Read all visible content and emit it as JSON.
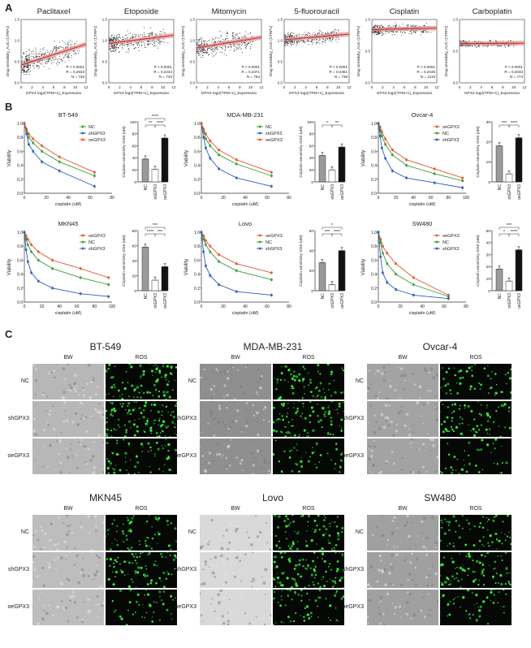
{
  "panels": {
    "a": "A",
    "b": "B",
    "c": "C"
  },
  "scatter": [
    {
      "title": "Paclitaxel",
      "stats": [
        "P < 0.0001",
        "R = 0.2843",
        "N = 746"
      ],
      "ylab": "Drug sensitivity_AUC (CTRP2)",
      "xlab": "GPX3 log2(TPM+1)_Expression",
      "slope": 0.55,
      "y0": 0.28,
      "spread": 0.18,
      "xticks": [
        "0",
        "2",
        "4",
        "6",
        "8",
        "10",
        "12"
      ],
      "yticks": [
        "0.0",
        "0.5",
        "1.0",
        "1.5"
      ]
    },
    {
      "title": "Etoposide",
      "stats": [
        "P < 0.0001",
        "R = 0.2234",
        "N = 733"
      ],
      "ylab": "Drug sensitivity_AUC (CTRP2)",
      "xlab": "GPX3 log2(TPM+1)_Expression",
      "slope": 0.22,
      "y0": 0.62,
      "spread": 0.14,
      "xticks": [
        "0",
        "2",
        "4",
        "6",
        "8",
        "10",
        "12"
      ],
      "yticks": [
        "0.0",
        "0.5",
        "1.0",
        "1.5"
      ]
    },
    {
      "title": "Mitomycin",
      "stats": [
        "P < 0.0001",
        "R = 0.2371",
        "N = 754"
      ],
      "ylab": "Drug sensitivity_AUC (CTRP2)",
      "xlab": "GPX3 log2(TPM+1)_Expression",
      "slope": 0.28,
      "y0": 0.55,
      "spread": 0.16,
      "xticks": [
        "0",
        "2",
        "4",
        "6",
        "8",
        "10",
        "12"
      ],
      "yticks": [
        "0.0",
        "0.5",
        "1.0",
        "1.5"
      ]
    },
    {
      "title": "5-fluorouracil",
      "stats": [
        "P < 0.0001",
        "R = 0.2451",
        "N = 738"
      ],
      "ylab": "Drug sensitivity_AUC (CTRP2)",
      "xlab": "GPX3 log2(TPM+1)_Expression",
      "slope": 0.15,
      "y0": 0.68,
      "spread": 0.1,
      "xticks": [
        "0",
        "2",
        "4",
        "6",
        "8",
        "10",
        "12"
      ],
      "yticks": [
        "0.0",
        "0.5",
        "1.0",
        "1.5"
      ]
    },
    {
      "title": "Cisplatin",
      "stats": [
        "P < 0.0001",
        "R = 0.2046",
        "N = 1115"
      ],
      "ylab": "Drug sensitivity_AUC (CTRP2)",
      "xlab": "GPX3 log2(TPM+1)_Expression",
      "slope": 0.04,
      "y0": 0.84,
      "spread": 0.08,
      "xticks": [
        "0",
        "2",
        "4",
        "6",
        "8",
        "10",
        "12"
      ],
      "yticks": [
        "0.0",
        "0.5",
        "1.0"
      ]
    },
    {
      "title": "Carboplatin",
      "stats": [
        "P < 0.0001",
        "R = 0.2033",
        "N = 773"
      ],
      "ylab": "Drug sensitivity_AUC (CTRP2)",
      "xlab": "GPX3 log2(TPM+1)_Expression",
      "slope": 0.01,
      "y0": 0.62,
      "spread": 0.05,
      "xticks": [
        "0",
        "2",
        "4",
        "6",
        "8",
        "10",
        "12"
      ],
      "yticks": [
        "0.0",
        "0.5",
        "1.0"
      ]
    }
  ],
  "line_charts": [
    {
      "title": "BT-549",
      "xlabel": "cisplatin (uM)",
      "ylabel": "Viability",
      "xmax": 80,
      "xticks": [
        "0",
        "20",
        "40",
        "60",
        "80"
      ],
      "yticks": [
        "0.0",
        "0.2",
        "0.4",
        "0.6",
        "0.8",
        "1.0"
      ],
      "series": [
        {
          "name": "NC",
          "color": "#3a9a3a",
          "x": [
            0,
            2,
            4,
            8,
            16,
            32,
            64
          ],
          "y": [
            1.0,
            0.9,
            0.8,
            0.72,
            0.6,
            0.45,
            0.25
          ]
        },
        {
          "name": "shGPX3",
          "color": "#2b5fb8",
          "x": [
            0,
            2,
            4,
            8,
            16,
            32,
            64
          ],
          "y": [
            1.0,
            0.85,
            0.7,
            0.6,
            0.45,
            0.32,
            0.1
          ]
        },
        {
          "name": "oeGPX3",
          "color": "#e0552d",
          "x": [
            0,
            2,
            4,
            8,
            16,
            32,
            64
          ],
          "y": [
            1.0,
            0.92,
            0.85,
            0.78,
            0.68,
            0.52,
            0.3
          ]
        }
      ]
    },
    {
      "title": "MDA-MB-231",
      "xlabel": "cisplatin (uM)",
      "ylabel": "Viability",
      "xmax": 80,
      "xticks": [
        "0",
        "20",
        "40",
        "60",
        "80"
      ],
      "yticks": [
        "0.0",
        "0.2",
        "0.4",
        "0.6",
        "0.8",
        "1.0"
      ],
      "series": [
        {
          "name": "NC",
          "color": "#3a9a3a",
          "x": [
            0,
            2,
            4,
            8,
            16,
            32,
            64
          ],
          "y": [
            1.0,
            0.88,
            0.78,
            0.68,
            0.55,
            0.42,
            0.25
          ]
        },
        {
          "name": "shGPX3",
          "color": "#2b5fb8",
          "x": [
            0,
            2,
            4,
            8,
            16,
            32,
            64
          ],
          "y": [
            1.0,
            0.8,
            0.65,
            0.5,
            0.35,
            0.22,
            0.1
          ]
        },
        {
          "name": "oeGPX3",
          "color": "#e0552d",
          "x": [
            0,
            2,
            4,
            8,
            16,
            32,
            64
          ],
          "y": [
            1.0,
            0.92,
            0.85,
            0.75,
            0.62,
            0.48,
            0.3
          ]
        }
      ]
    },
    {
      "title": "Ovcar-4",
      "xlabel": "cisplatin (uM)",
      "ylabel": "Viability",
      "xmax": 100,
      "xticks": [
        "0",
        "20",
        "40",
        "60",
        "80",
        "100"
      ],
      "yticks": [
        "0.0",
        "0.2",
        "0.4",
        "0.6",
        "0.8",
        "1.0"
      ],
      "series": [
        {
          "name": "oeGPX3",
          "color": "#e0552d",
          "x": [
            0,
            2,
            4,
            8,
            16,
            32,
            64,
            96
          ],
          "y": [
            1.0,
            0.95,
            0.88,
            0.78,
            0.62,
            0.48,
            0.35,
            0.22
          ]
        },
        {
          "name": "NC",
          "color": "#3a9a3a",
          "x": [
            0,
            2,
            4,
            8,
            16,
            32,
            64,
            96
          ],
          "y": [
            1.0,
            0.9,
            0.82,
            0.7,
            0.55,
            0.4,
            0.28,
            0.18
          ]
        },
        {
          "name": "shGPX3",
          "color": "#2b5fb8",
          "x": [
            0,
            2,
            4,
            8,
            16,
            32,
            64,
            96
          ],
          "y": [
            1.0,
            0.82,
            0.65,
            0.5,
            0.32,
            0.22,
            0.15,
            0.08
          ]
        }
      ]
    },
    {
      "title": "MKN45",
      "xlabel": "cisplatin (uM)",
      "ylabel": "Viability",
      "xmax": 100,
      "xticks": [
        "0",
        "20",
        "40",
        "60",
        "80",
        "100"
      ],
      "yticks": [
        "0.0",
        "0.2",
        "0.4",
        "0.6",
        "0.8",
        "1.0"
      ],
      "series": [
        {
          "name": "oeGPX3",
          "color": "#e0552d",
          "x": [
            0,
            2,
            4,
            8,
            16,
            32,
            64,
            96
          ],
          "y": [
            1.0,
            0.95,
            0.9,
            0.82,
            0.72,
            0.6,
            0.48,
            0.35
          ]
        },
        {
          "name": "NC",
          "color": "#3a9a3a",
          "x": [
            0,
            2,
            4,
            8,
            16,
            32,
            64,
            96
          ],
          "y": [
            1.0,
            0.9,
            0.82,
            0.72,
            0.6,
            0.48,
            0.35,
            0.25
          ]
        },
        {
          "name": "shGPX3",
          "color": "#2b5fb8",
          "x": [
            0,
            2,
            4,
            8,
            16,
            32,
            64,
            96
          ],
          "y": [
            1.0,
            0.75,
            0.58,
            0.42,
            0.3,
            0.2,
            0.12,
            0.08
          ]
        }
      ]
    },
    {
      "title": "Lovo",
      "xlabel": "cisplatin (uM)",
      "ylabel": "Viability",
      "xmax": 80,
      "xticks": [
        "0",
        "20",
        "40",
        "60",
        "80"
      ],
      "yticks": [
        "0.0",
        "0.2",
        "0.4",
        "0.6",
        "0.8",
        "1.0"
      ],
      "series": [
        {
          "name": "oeGPX3",
          "color": "#e0552d",
          "x": [
            0,
            2,
            4,
            8,
            16,
            32,
            64
          ],
          "y": [
            1.0,
            0.95,
            0.88,
            0.8,
            0.68,
            0.55,
            0.42
          ]
        },
        {
          "name": "NC",
          "color": "#3a9a3a",
          "x": [
            0,
            2,
            4,
            8,
            16,
            32,
            64
          ],
          "y": [
            1.0,
            0.9,
            0.82,
            0.72,
            0.58,
            0.45,
            0.32
          ]
        },
        {
          "name": "shGPX3",
          "color": "#2b5fb8",
          "x": [
            0,
            2,
            4,
            8,
            16,
            32,
            64
          ],
          "y": [
            1.0,
            0.72,
            0.52,
            0.38,
            0.25,
            0.15,
            0.1
          ]
        }
      ]
    },
    {
      "title": "SW480",
      "xlabel": "cisplatin (uM)",
      "ylabel": "Viability",
      "xmax": 80,
      "xticks": [
        "0",
        "20",
        "40",
        "60",
        "80"
      ],
      "yticks": [
        "0.0",
        "0.2",
        "0.4",
        "0.6",
        "0.8",
        "1.0"
      ],
      "series": [
        {
          "name": "oeGPX3",
          "color": "#e0552d",
          "x": [
            0,
            2,
            4,
            8,
            16,
            32,
            64
          ],
          "y": [
            1.0,
            0.9,
            0.8,
            0.7,
            0.55,
            0.35,
            0.1
          ]
        },
        {
          "name": "NC",
          "color": "#3a9a3a",
          "x": [
            0,
            2,
            4,
            8,
            16,
            32,
            64
          ],
          "y": [
            1.0,
            0.85,
            0.7,
            0.55,
            0.4,
            0.25,
            0.08
          ]
        },
        {
          "name": "shGPX3",
          "color": "#2b5fb8",
          "x": [
            0,
            2,
            4,
            8,
            16,
            32,
            64
          ],
          "y": [
            1.0,
            0.65,
            0.42,
            0.28,
            0.18,
            0.1,
            0.05
          ]
        }
      ]
    }
  ],
  "bar_charts": [
    {
      "ylabel": "Cisplatin sensitivity IC50 (uM)",
      "ymax": 100,
      "yticks": [
        "0",
        "20",
        "40",
        "60",
        "80",
        "100"
      ],
      "categories": [
        "NC",
        "shGPX3",
        "oeGPX3"
      ],
      "values": [
        38,
        21,
        73
      ],
      "colors": [
        "#9a9a9a",
        "#ffffff",
        "#111111"
      ],
      "sig": [
        {
          "a": 0,
          "b": 1,
          "label": "**"
        },
        {
          "a": 1,
          "b": 2,
          "label": "****"
        },
        {
          "a": 0,
          "b": 2,
          "label": "****"
        }
      ]
    },
    {
      "ylabel": "Cisplatin sensitivity IC50 (uM)",
      "ymax": 100,
      "yticks": [
        "0",
        "20",
        "40",
        "60",
        "80",
        "100"
      ],
      "categories": [
        "NC",
        "shGPX3",
        "oeGPX3"
      ],
      "values": [
        44,
        20,
        58
      ],
      "colors": [
        "#9a9a9a",
        "#ffffff",
        "#111111"
      ],
      "sig": [
        {
          "a": 0,
          "b": 1,
          "label": "*"
        },
        {
          "a": 1,
          "b": 2,
          "label": "**"
        }
      ]
    },
    {
      "ylabel": "Cisplatin sensitivity IC50 (uM)",
      "ymax": 30,
      "yticks": [
        "0",
        "10",
        "20",
        "30"
      ],
      "categories": [
        "NC",
        "shGPX3",
        "oeGPX3"
      ],
      "values": [
        18,
        4,
        22
      ],
      "colors": [
        "#9a9a9a",
        "#ffffff",
        "#111111"
      ],
      "sig": [
        {
          "a": 0,
          "b": 1,
          "label": "***"
        },
        {
          "a": 1,
          "b": 2,
          "label": "****"
        }
      ]
    },
    {
      "ylabel": "Cisplatin sensitivity IC50 (uM)",
      "ymax": 80,
      "yticks": [
        "0",
        "20",
        "40",
        "60",
        "80"
      ],
      "categories": [
        "NC",
        "shGPX3",
        "oeGPX3"
      ],
      "values": [
        58,
        14,
        32
      ],
      "colors": [
        "#9a9a9a",
        "#ffffff",
        "#111111"
      ],
      "sig": [
        {
          "a": 0,
          "b": 1,
          "label": "****"
        },
        {
          "a": 1,
          "b": 2,
          "label": "***"
        },
        {
          "a": 0,
          "b": 2,
          "label": "***"
        }
      ]
    },
    {
      "ylabel": "Cisplatin sensitivity IC50 (uM)",
      "ymax": 60,
      "yticks": [
        "0",
        "20",
        "40",
        "60"
      ],
      "categories": [
        "NC",
        "shGPX3",
        "oeGPX3"
      ],
      "values": [
        28,
        6,
        40
      ],
      "colors": [
        "#9a9a9a",
        "#ffffff",
        "#111111"
      ],
      "sig": [
        {
          "a": 0,
          "b": 1,
          "label": "***"
        },
        {
          "a": 1,
          "b": 2,
          "label": "****"
        },
        {
          "a": 0,
          "b": 2,
          "label": "*"
        }
      ]
    },
    {
      "ylabel": "Cisplatin sensitivity IC50 (uM)",
      "ymax": 50,
      "yticks": [
        "0",
        "10",
        "20",
        "30",
        "40",
        "50"
      ],
      "categories": [
        "NC",
        "shGPX3",
        "oeGPX3"
      ],
      "values": [
        18,
        8,
        34
      ],
      "colors": [
        "#9a9a9a",
        "#ffffff",
        "#111111"
      ],
      "sig": [
        {
          "a": 0,
          "b": 1,
          "label": "*"
        },
        {
          "a": 1,
          "b": 2,
          "label": "****"
        },
        {
          "a": 0,
          "b": 2,
          "label": "***"
        }
      ]
    }
  ],
  "micro": [
    {
      "title": "BW-ROS BT-549",
      "name": "BT-549",
      "bw_tone": "#b7b7b7",
      "density": 90
    },
    {
      "title": "MDA-MB-231",
      "name": "MDA-MB-231",
      "bw_tone": "#8f8f8f",
      "density": 70
    },
    {
      "title": "Ovcar-4",
      "name": "Ovcar-4",
      "bw_tone": "#a3a3a3",
      "density": 55
    },
    {
      "title": "MKN45",
      "name": "MKN45",
      "bw_tone": "#bdbdbd",
      "density": 60
    },
    {
      "title": "Lovo",
      "name": "Lovo",
      "bw_tone": "#d9d9d9",
      "density": 80
    },
    {
      "title": "SW480",
      "name": "SW480",
      "bw_tone": "#a0a0a0",
      "density": 65
    }
  ],
  "micro_labels": {
    "bw": "BW",
    "ros": "ROS",
    "rows": [
      "NC",
      "shGPX3",
      "oeGPX3"
    ]
  },
  "chart_data": [
    {
      "type": "scatter",
      "title": "Paclitaxel",
      "xlabel": "GPX3 log2(TPM+1)_Expression",
      "ylabel": "Drug sensitivity_AUC (CTRP2)",
      "annotations": [
        "P < 0.0001",
        "R = 0.2843",
        "N = 746"
      ]
    },
    {
      "type": "scatter",
      "title": "Etoposide",
      "xlabel": "GPX3 log2(TPM+1)_Expression",
      "ylabel": "Drug sensitivity_AUC (CTRP2)",
      "annotations": [
        "P < 0.0001",
        "R = 0.2234",
        "N = 733"
      ]
    },
    {
      "type": "scatter",
      "title": "Mitomycin",
      "xlabel": "GPX3 log2(TPM+1)_Expression",
      "ylabel": "Drug sensitivity_AUC (CTRP2)",
      "annotations": [
        "P < 0.0001",
        "R = 0.2371",
        "N = 754"
      ]
    },
    {
      "type": "scatter",
      "title": "5-fluorouracil",
      "xlabel": "GPX3 log2(TPM+1)_Expression",
      "ylabel": "Drug sensitivity_AUC (CTRP2)",
      "annotations": [
        "P < 0.0001",
        "R = 0.2451",
        "N = 738"
      ]
    },
    {
      "type": "scatter",
      "title": "Cisplatin",
      "xlabel": "GPX3 log2(TPM+1)_Expression",
      "ylabel": "Drug sensitivity_AUC (CTRP2)",
      "annotations": [
        "P < 0.0001",
        "R = 0.2046",
        "N = 1115"
      ]
    },
    {
      "type": "scatter",
      "title": "Carboplatin",
      "xlabel": "GPX3 log2(TPM+1)_Expression",
      "ylabel": "Drug sensitivity_AUC (CTRP2)",
      "annotations": [
        "P < 0.0001",
        "R = 0.2033",
        "N = 773"
      ]
    }
  ]
}
